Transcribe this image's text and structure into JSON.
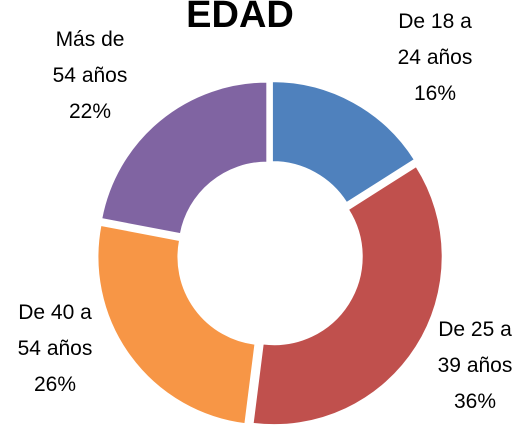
{
  "chart_data": {
    "type": "donut",
    "title": "EDAD",
    "categories": [
      "De 18 a 24 años",
      "De 25 a 39 años",
      "De 40 a 54 años",
      "Más de 54 años"
    ],
    "values": [
      16,
      36,
      26,
      22
    ],
    "value_labels": [
      "16%",
      "36%",
      "26%",
      "22%"
    ],
    "colors": [
      "#4f81bd",
      "#c0504d",
      "#f79646",
      "#8064a2"
    ]
  }
}
